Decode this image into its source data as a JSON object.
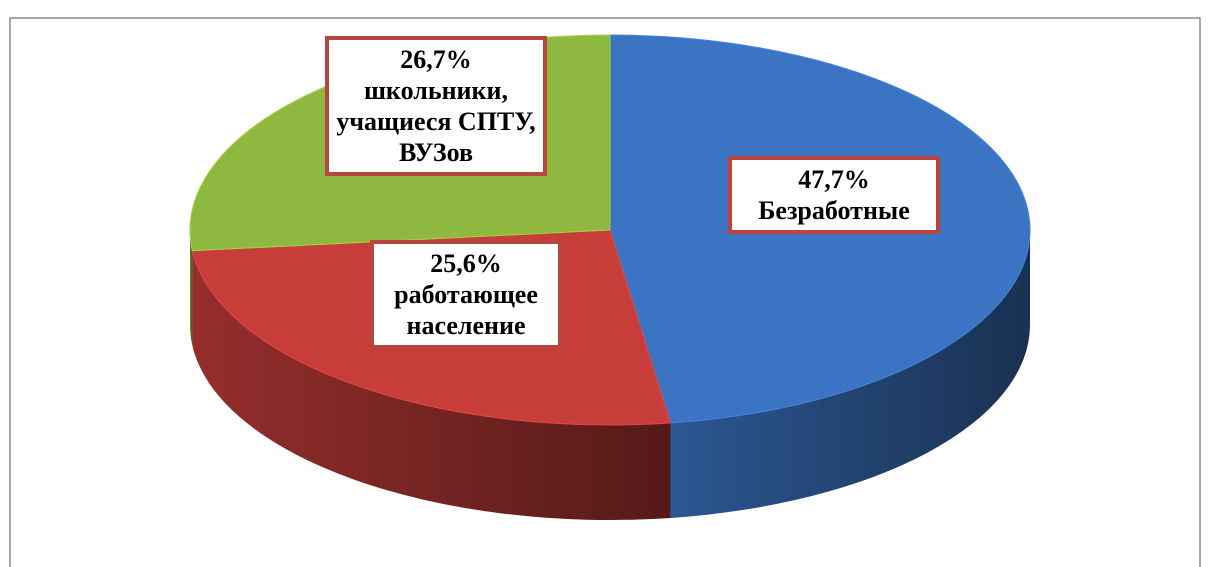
{
  "chart_data": {
    "type": "pie",
    "categories": [
      "Безработные",
      "работающее население",
      "школьники, учащиеся СПТУ, ВУЗов"
    ],
    "values": [
      47.7,
      25.6,
      26.7
    ],
    "value_labels": [
      "47,7%",
      "25,6%",
      "26,7%"
    ],
    "colors": [
      "#3b74c2",
      "#c73d3a",
      "#8fb840"
    ]
  }
}
